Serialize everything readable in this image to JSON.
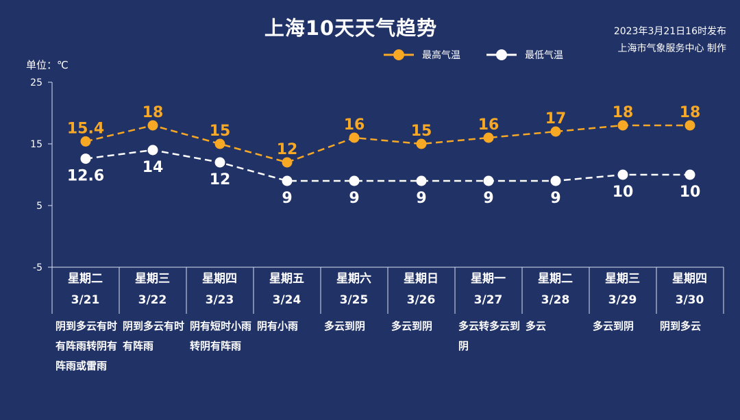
{
  "title": "上海10天天气趋势",
  "publish": {
    "time": "2023年3月21日16时发布",
    "source": "上海市气象服务中心 制作"
  },
  "unit_label": "单位：℃",
  "colors": {
    "background": "#213266",
    "high": "#F7A824",
    "low": "#FFFFFF",
    "axis": "#D9E1F2"
  },
  "chart_data": {
    "type": "line",
    "ylim": [
      -5,
      25
    ],
    "yticks": [
      -5,
      5,
      15,
      25
    ],
    "grid": false,
    "legend": "top-center",
    "categories": [
      "3/21",
      "3/22",
      "3/23",
      "3/24",
      "3/25",
      "3/26",
      "3/27",
      "3/28",
      "3/29",
      "3/30"
    ],
    "weekdays": [
      "星期二",
      "星期三",
      "星期四",
      "星期五",
      "星期六",
      "星期日",
      "星期一",
      "星期二",
      "星期三",
      "星期四"
    ],
    "weather": [
      "阴到多云有时有阵雨转阴有阵雨或雷雨",
      "阴到多云有时有阵雨",
      "阴有短时小雨转阴有阵雨",
      "阴有小雨",
      "多云到阴",
      "多云到阴",
      "多云转多云到阴",
      "多云",
      "多云到阴",
      "阴到多云"
    ],
    "series": [
      {
        "name": "最高气温",
        "values": [
          15.4,
          18,
          15,
          12,
          16,
          15,
          16,
          17,
          18,
          18
        ],
        "labels": [
          "15.4",
          "18",
          "15",
          "12",
          "16",
          "15",
          "16",
          "17",
          "18",
          "18"
        ]
      },
      {
        "name": "最低气温",
        "values": [
          12.6,
          14,
          12,
          9,
          9,
          9,
          9,
          9,
          10,
          10
        ],
        "labels": [
          "12.6",
          "14",
          "12",
          "9",
          "9",
          "9",
          "9",
          "9",
          "10",
          "10"
        ]
      }
    ]
  }
}
